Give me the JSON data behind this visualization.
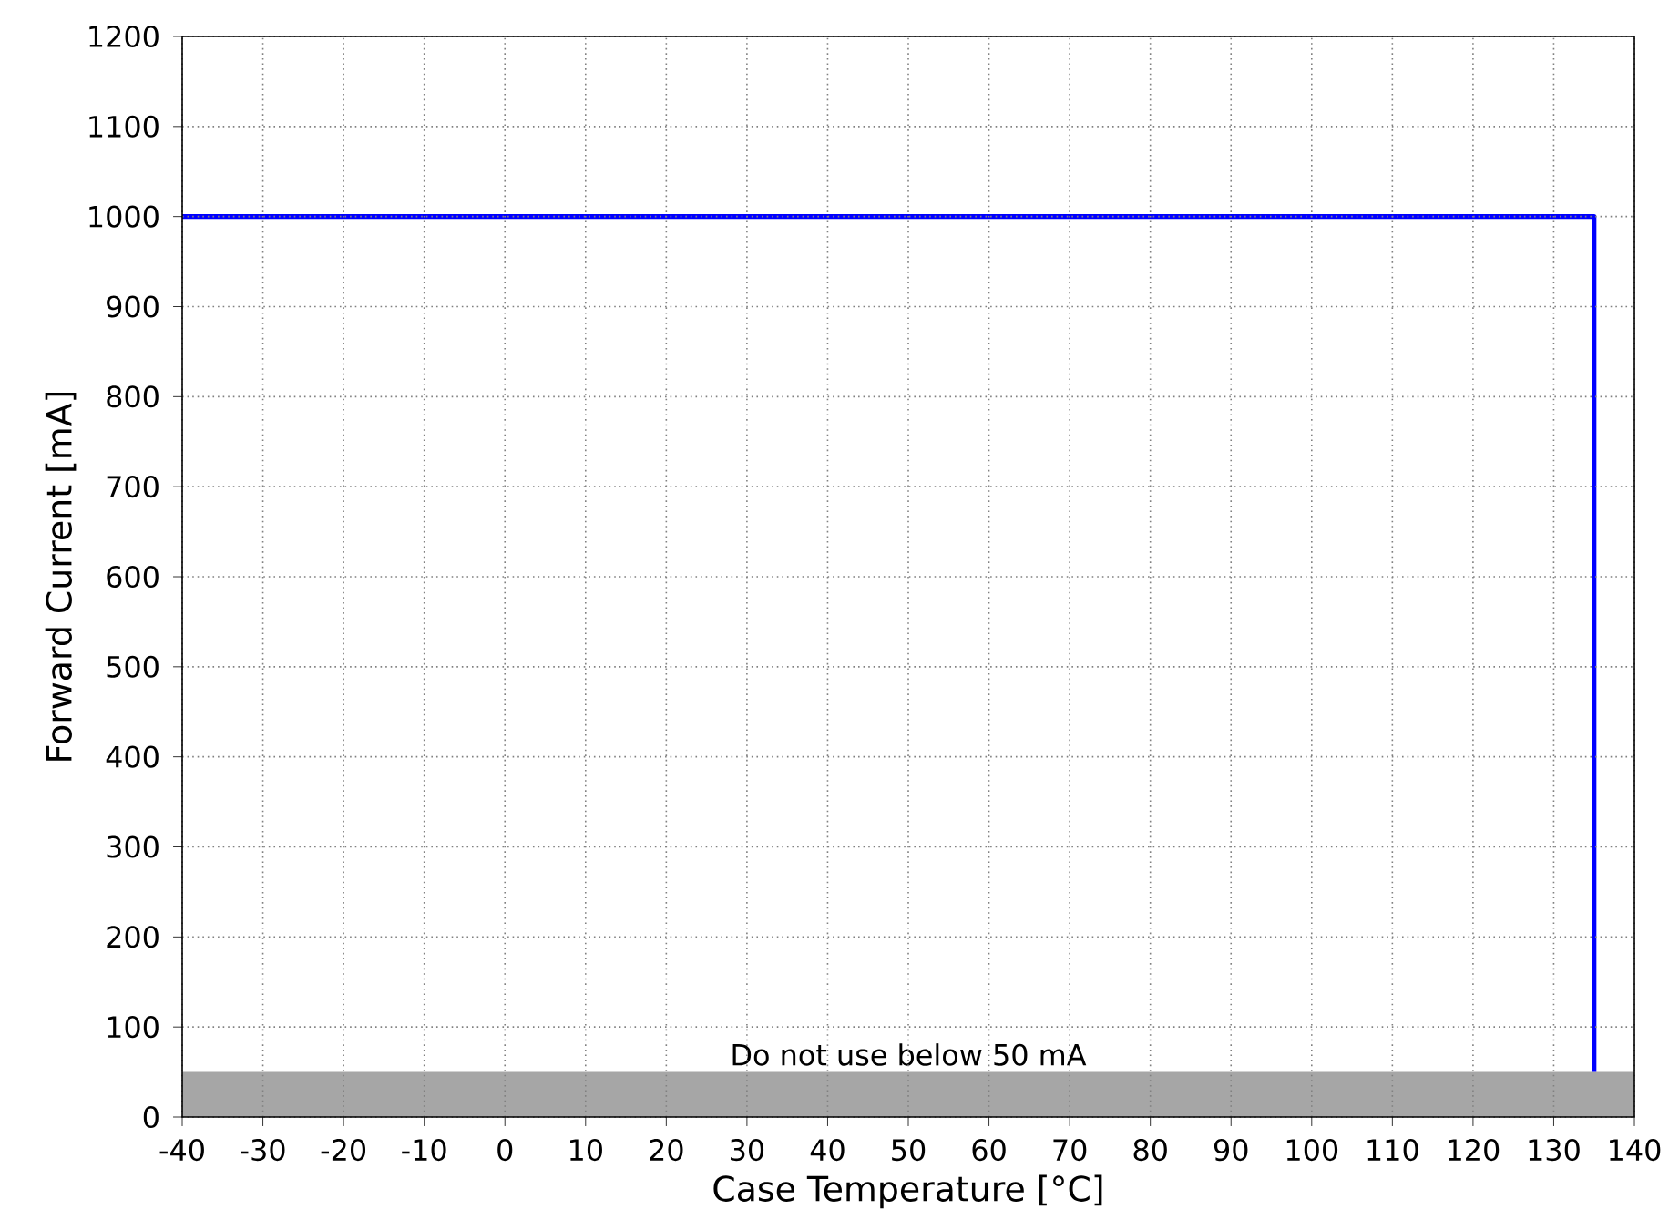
{
  "chart_data": {
    "type": "step",
    "xlabel": "Case Temperature [°C]",
    "ylabel": "Forward Current [mA]",
    "x": [
      -40,
      135
    ],
    "series": [
      {
        "color": "#0000ff",
        "values": [
          1000,
          50
        ]
      }
    ],
    "xlim": [
      -40,
      140
    ],
    "ylim": [
      0,
      1200
    ],
    "xticks": [
      -40,
      -30,
      -20,
      -10,
      0,
      10,
      20,
      30,
      40,
      50,
      60,
      70,
      80,
      90,
      100,
      110,
      120,
      130,
      140
    ],
    "yticks": [
      0,
      100,
      200,
      300,
      400,
      500,
      600,
      700,
      800,
      900,
      1000,
      1100,
      1200
    ],
    "grid": true,
    "bands": [
      {
        "axis": "y",
        "from": 0,
        "to": 50,
        "label": "Do not use below 50 mA",
        "color": "#a6a6a6"
      }
    ]
  }
}
